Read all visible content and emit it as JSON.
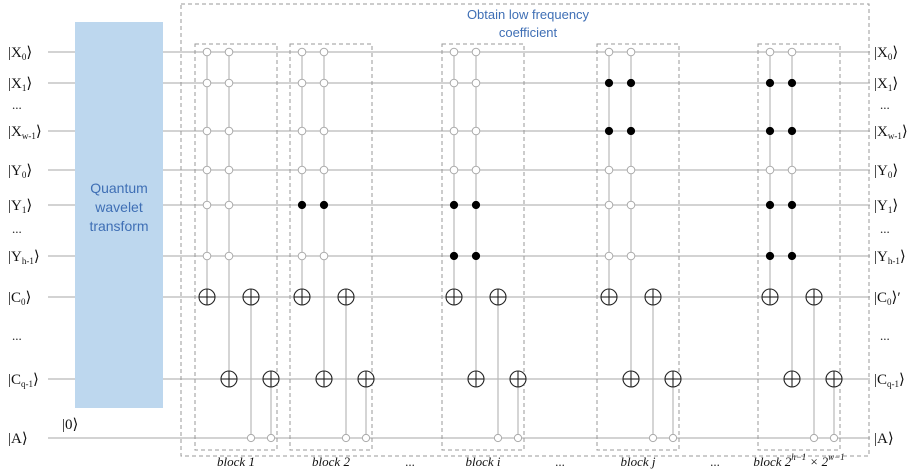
{
  "title_lines": [
    "Obtain low frequency",
    "coefficient"
  ],
  "transform_lines": [
    "Quantum",
    "wavelet",
    "transform"
  ],
  "ancilla_init": "|0⟩",
  "ellipsis": "...",
  "left_kets": [
    {
      "name": "X",
      "sub": "0",
      "suffix": ""
    },
    {
      "name": "X",
      "sub": "1",
      "suffix": ""
    },
    {
      "name": "X",
      "sub": "w-1",
      "suffix": ""
    },
    {
      "name": "Y",
      "sub": "0",
      "suffix": ""
    },
    {
      "name": "Y",
      "sub": "1",
      "suffix": ""
    },
    {
      "name": "Y",
      "sub": "h-1",
      "suffix": ""
    },
    {
      "name": "C",
      "sub": "0",
      "suffix": ""
    },
    {
      "name": "C",
      "sub": "q-1",
      "suffix": ""
    },
    {
      "name": "A",
      "sub": "",
      "suffix": ""
    }
  ],
  "right_kets": [
    {
      "name": "X",
      "sub": "0",
      "suffix": ""
    },
    {
      "name": "X",
      "sub": "1",
      "suffix": ""
    },
    {
      "name": "X",
      "sub": "w-1",
      "suffix": ""
    },
    {
      "name": "Y",
      "sub": "0",
      "suffix": ""
    },
    {
      "name": "Y",
      "sub": "1",
      "suffix": ""
    },
    {
      "name": "Y",
      "sub": "h-1",
      "suffix": ""
    },
    {
      "name": "C",
      "sub": "0",
      "suffix": "′"
    },
    {
      "name": "C",
      "sub": "q-1",
      "suffix": ""
    },
    {
      "name": "A",
      "sub": "",
      "suffix": ""
    }
  ],
  "blocks": [
    {
      "label": "block 1",
      "filled_rows": []
    },
    {
      "label": "block 2",
      "filled_rows": [
        "Y1"
      ]
    },
    {
      "label": "block i",
      "filled_rows": [
        "Y1",
        "Yh-1"
      ]
    },
    {
      "label": "block j",
      "filled_rows": [
        "X1",
        "Xw-1"
      ]
    },
    {
      "label": "block 2^(h-1) × 2^(w-1)",
      "filled_rows": [
        "X1",
        "Xw-1",
        "Y1",
        "Yh-1"
      ]
    }
  ],
  "block_last_label": {
    "prefix": "block 2",
    "exp1": "h−1",
    "mid": " × 2",
    "exp2": "w−1"
  },
  "colors": {
    "wire": "#b9b9b9",
    "transform_fill": "#bdd7ee",
    "transform_text": "#3f6fb5",
    "dash": "#9a9a9a",
    "filled_control": "#000000",
    "open_control": "#ffffff"
  }
}
